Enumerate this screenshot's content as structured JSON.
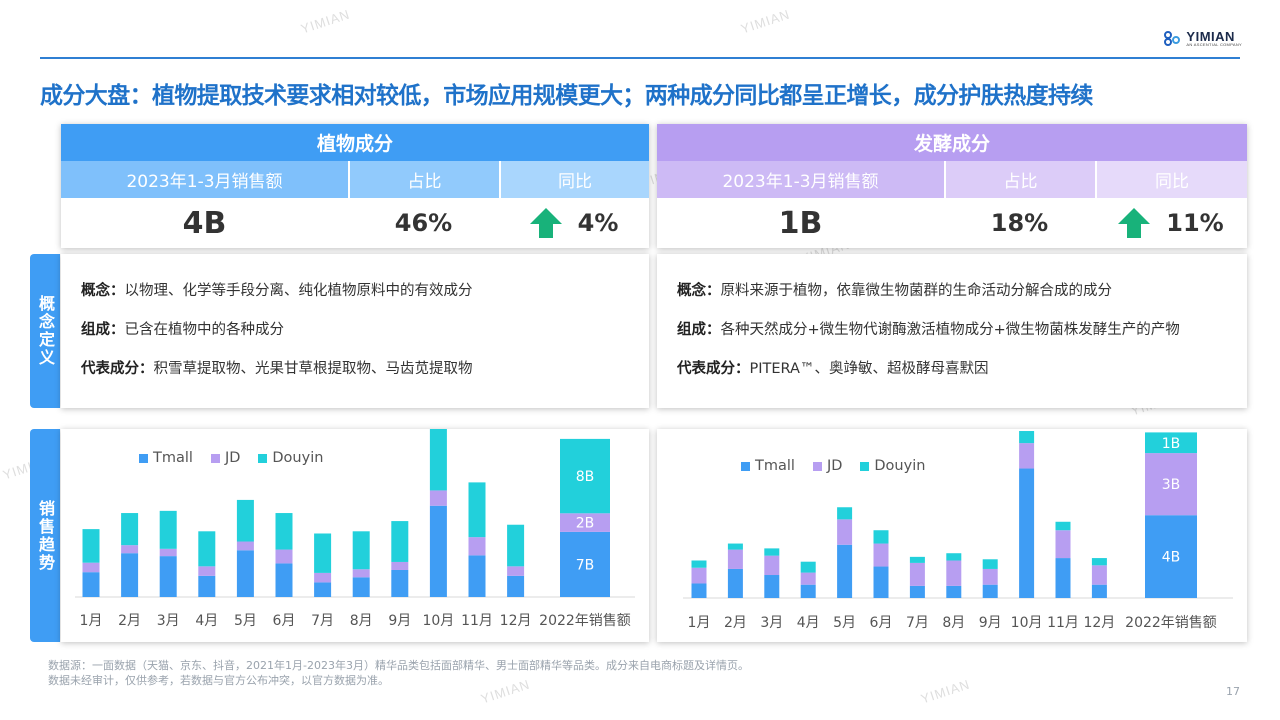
{
  "brand": {
    "name": "YIMIAN",
    "sub": "AN ASCENTIAL COMPANY"
  },
  "watermark": "YIMIAN",
  "title": "成分大盘：植物提取技术要求相对较低，市场应用规模更大；两种成分同比都呈正增长，成分护肤热度持续",
  "side_tabs": {
    "definition": "概念定义",
    "trend": "销售趋势"
  },
  "cards": {
    "plant": {
      "title": "植物成分",
      "col_sales": "2023年1-3月销售额",
      "col_share": "占比",
      "col_yoy": "同比",
      "sales": "4B",
      "share": "46%",
      "yoy": "4%"
    },
    "ferm": {
      "title": "发酵成分",
      "col_sales": "2023年1-3月销售额",
      "col_share": "占比",
      "col_yoy": "同比",
      "sales": "1B",
      "share": "18%",
      "yoy": "11%"
    }
  },
  "definitions": {
    "plant": {
      "concept_label": "概念：",
      "concept": "以物理、化学等手段分离、纯化植物原料中的有效成分",
      "composition_label": "组成：",
      "composition": "已含在植物中的各种成分",
      "rep_label": "代表成分：",
      "rep": "积雪草提取物、光果甘草根提取物、马齿苋提取物"
    },
    "ferm": {
      "concept_label": "概念：",
      "concept": "原料来源于植物，依靠微生物菌群的生命活动分解合成的成分",
      "composition_label": "组成：",
      "composition": "各种天然成分+微生物代谢酶激活植物成分+微生物菌株发酵生产的产物",
      "rep_label": "代表成分：",
      "rep": "PITERA™、奥竫敏、超极酵母喜默因"
    }
  },
  "colors": {
    "tmall": "#3f9df4",
    "jd": "#b79ef1",
    "douyin": "#22d0db"
  },
  "chart_data": [
    {
      "type": "bar",
      "stacked": true,
      "categories": [
        "1月",
        "2月",
        "3月",
        "4月",
        "5月",
        "6月",
        "7月",
        "8月",
        "9月",
        "10月",
        "11月",
        "12月",
        "2022年销售额"
      ],
      "series": [
        {
          "name": "Tmall",
          "values": [
            0.34,
            0.6,
            0.56,
            0.29,
            0.64,
            0.46,
            0.2,
            0.27,
            0.37,
            1.25,
            0.57,
            0.29,
            7
          ]
        },
        {
          "name": "JD",
          "values": [
            0.13,
            0.11,
            0.1,
            0.13,
            0.12,
            0.19,
            0.13,
            0.11,
            0.11,
            0.21,
            0.25,
            0.13,
            2
          ]
        },
        {
          "name": "Douyin",
          "values": [
            0.46,
            0.44,
            0.52,
            0.48,
            0.57,
            0.5,
            0.54,
            0.52,
            0.56,
            0.96,
            0.75,
            0.57,
            8
          ]
        }
      ],
      "bar_labels": {
        "12": [
          "7B",
          "2B",
          "8B"
        ]
      },
      "legend_position": "top-left"
    },
    {
      "type": "bar",
      "stacked": true,
      "categories": [
        "1月",
        "2月",
        "3月",
        "4月",
        "5月",
        "6月",
        "7月",
        "8月",
        "9月",
        "10月",
        "11月",
        "12月",
        "2022年销售额"
      ],
      "series": [
        {
          "name": "Tmall",
          "values": [
            0.12,
            0.24,
            0.19,
            0.11,
            0.44,
            0.26,
            0.1,
            0.1,
            0.11,
            1.07,
            0.33,
            0.11,
            4
          ]
        },
        {
          "name": "JD",
          "values": [
            0.13,
            0.16,
            0.16,
            0.1,
            0.21,
            0.19,
            0.19,
            0.21,
            0.13,
            0.21,
            0.23,
            0.16,
            3
          ]
        },
        {
          "name": "Douyin",
          "values": [
            0.06,
            0.05,
            0.06,
            0.09,
            0.1,
            0.11,
            0.05,
            0.06,
            0.08,
            0.1,
            0.07,
            0.06,
            1
          ]
        }
      ],
      "bar_labels": {
        "12": [
          "4B",
          "3B",
          "1B"
        ]
      },
      "legend_position": "top-left"
    }
  ],
  "footnote": {
    "line1": "数据源：一面数据（天猫、京东、抖音，2021年1月-2023年3月）精华品类包括面部精华、男士面部精华等品类。成分来自电商标题及详情页。",
    "line2": "数据未经审计，仅供参考，若数据与官方公布冲突，以官方数据为准。"
  },
  "page_number": "17"
}
